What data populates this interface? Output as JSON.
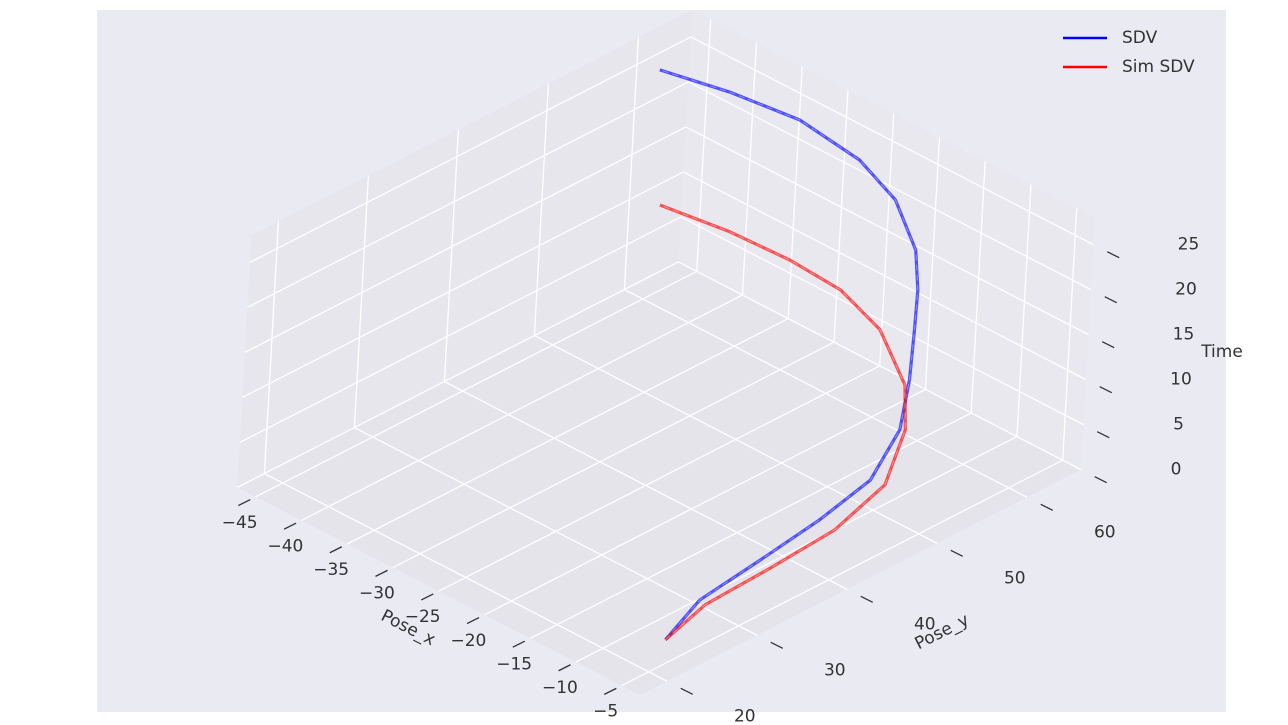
{
  "chart_data": {
    "type": "line3d",
    "xlabel": "Pose_x",
    "ylabel": "Pose_y",
    "zlabel": "Time",
    "xlim": [
      -47,
      -3
    ],
    "ylim": [
      17,
      66
    ],
    "zlim": [
      0,
      28
    ],
    "xticks": [
      {
        "value": -45,
        "label": "−45"
      },
      {
        "value": -40,
        "label": "−40"
      },
      {
        "value": -35,
        "label": "−35"
      },
      {
        "value": -30,
        "label": "−30"
      },
      {
        "value": -25,
        "label": "−25"
      },
      {
        "value": -20,
        "label": "−20"
      },
      {
        "value": -15,
        "label": "−15"
      },
      {
        "value": -10,
        "label": "−10"
      },
      {
        "value": -5,
        "label": "−5"
      }
    ],
    "yticks": [
      20,
      30,
      40,
      50,
      60
    ],
    "zticks": [
      0,
      5,
      10,
      15,
      20,
      25
    ],
    "grid": true,
    "legend": "upper right",
    "series": [
      {
        "name": "SDV",
        "color": "#0000ff",
        "x": [
          -7.5,
          -8.0,
          -7.1,
          -6.3,
          -5.9,
          -7.8,
          -10.7,
          -13.9,
          -16.1,
          -18.6,
          -23.2,
          -27.5,
          -33.2,
          -38.1,
          -42.4
        ],
        "y": [
          24.4,
          28.6,
          34.3,
          40.0,
          45.1,
          50.2,
          54.1,
          57.8,
          60.3,
          62.5,
          64.8,
          65.1,
          64.1,
          61.2,
          57.7
        ],
        "z": [
          0,
          2,
          4,
          6,
          8,
          10,
          12,
          14,
          16,
          18,
          20,
          22,
          24,
          26,
          28
        ]
      },
      {
        "name": "Sim SDV",
        "color": "#ff0000",
        "x": [
          -7.5,
          -7.2,
          -5.7,
          -4.4,
          -4.6,
          -7.5,
          -10.4,
          -15.8,
          -20.3,
          -24.4,
          -28.8,
          -33.6
        ],
        "y": [
          24.4,
          28.4,
          34.0,
          39.7,
          45.4,
          50.5,
          53.3,
          55.9,
          56.0,
          54.4,
          52.1,
          49.1
        ],
        "z": [
          0,
          2,
          4,
          6,
          8,
          10,
          12,
          14,
          16,
          18,
          20,
          22
        ]
      }
    ]
  }
}
